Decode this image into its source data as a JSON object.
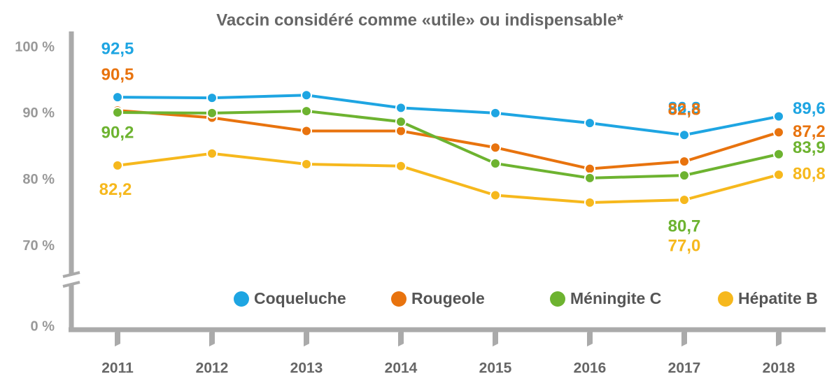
{
  "chart_data": {
    "type": "line",
    "title": "Vaccin considéré comme «utile» ou indispensable*",
    "categories": [
      "2011",
      "2012",
      "2013",
      "2014",
      "2015",
      "2016",
      "2017",
      "2018"
    ],
    "series": [
      {
        "name": "Coqueluche",
        "color": "#1ea5e2",
        "values": [
          92.5,
          92.4,
          92.8,
          90.9,
          90.1,
          88.6,
          86.8,
          89.6
        ],
        "value_labels": [
          "92,5",
          null,
          null,
          null,
          null,
          null,
          "86,8",
          "89,6"
        ]
      },
      {
        "name": "Rougeole",
        "color": "#e8730e",
        "values": [
          90.5,
          89.4,
          87.4,
          87.4,
          84.9,
          81.7,
          82.8,
          87.2
        ],
        "value_labels": [
          "90,5",
          null,
          null,
          null,
          null,
          null,
          "82,8",
          "87,2"
        ]
      },
      {
        "name": "Méningite C",
        "color": "#6db330",
        "values": [
          90.2,
          90.1,
          90.4,
          88.8,
          82.5,
          80.3,
          80.7,
          83.9
        ],
        "value_labels": [
          "90,2",
          null,
          null,
          null,
          null,
          null,
          "80,7",
          "83,9"
        ]
      },
      {
        "name": "Hépatite B",
        "color": "#f6b81d",
        "values": [
          82.2,
          84.0,
          82.4,
          82.1,
          77.7,
          76.6,
          77.0,
          80.8
        ],
        "value_labels": [
          "82,2",
          null,
          null,
          null,
          null,
          null,
          "77,0",
          "80,8"
        ]
      }
    ],
    "ylim": [
      0,
      100
    ],
    "axis_break": 65,
    "yticks": [
      {
        "value": 0,
        "label": "0 %"
      },
      {
        "value": 70,
        "label": "70 %"
      },
      {
        "value": 80,
        "label": "80 %"
      },
      {
        "value": 90,
        "label": "90 %"
      },
      {
        "value": 100,
        "label": "100 %"
      }
    ],
    "legend": "bottom-right"
  }
}
